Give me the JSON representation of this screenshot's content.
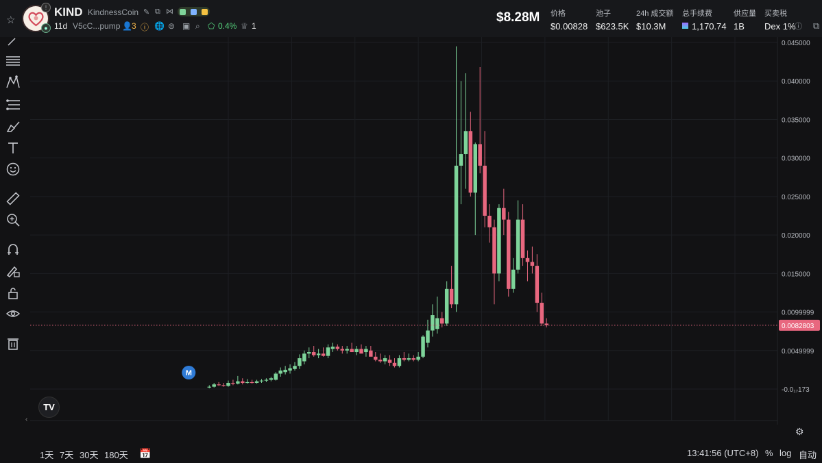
{
  "header": {
    "ticker": "KIND",
    "name": "KindnessCoin",
    "age": "11d",
    "address": "V5cC...pump",
    "holders_count": "3",
    "percent": "0.4%",
    "count": "1",
    "market_cap": "$8.28M",
    "stats": [
      {
        "label": "价格",
        "value": "$0.00828"
      },
      {
        "label": "池子",
        "value": "$623.5K"
      },
      {
        "label": "24h 成交额",
        "value": "$10.3M"
      },
      {
        "label": "总手续费",
        "value": "1,170.74"
      },
      {
        "label": "供应量",
        "value": "1B"
      },
      {
        "label": "买卖税",
        "value": "Dex 1%"
      }
    ],
    "icons": [
      "star-icon",
      "edit-icon",
      "copy-icon",
      "share-icon",
      "user-icon",
      "info-icon",
      "globe-icon",
      "twitter-icon",
      "telegram-icon",
      "search-icon",
      "lock-icon",
      "crown-icon"
    ]
  },
  "toolbar": {
    "tools": [
      "trendline-icon",
      "horizontal-lines-icon",
      "pattern-icon",
      "fib-icon",
      "brush-icon",
      "text-icon",
      "emoji-icon",
      "ruler-icon",
      "zoom-in-icon",
      "magnet-icon",
      "pencil-lock-icon",
      "lock-icon",
      "eye-icon",
      "trash-icon"
    ]
  },
  "bottom": {
    "ranges": [
      "1天",
      "7天",
      "30天",
      "180天"
    ],
    "time": "13:41:56 (UTC+8)",
    "percent_label": "%",
    "log_label": "log",
    "auto_label": "自动"
  },
  "colors": {
    "up": "#7ed49a",
    "down": "#e8677f",
    "last_price": "#e8677f",
    "marker": "#2f7bd6"
  },
  "chart_data": {
    "type": "candlestick",
    "price_label": "0.0082803",
    "y_ticks": [
      "0.045000",
      "0.040000",
      "0.035000",
      "0.030000",
      "0.025000",
      "0.020000",
      "0.015000",
      "0.0099999",
      "0.0049999",
      "-0.0₁₇173"
    ],
    "y_tick_values": [
      0.045,
      0.04,
      0.035,
      0.03,
      0.025,
      0.02,
      0.015,
      0.01,
      0.005,
      0.0
    ],
    "x_ticks": [
      "8",
      "10",
      "12",
      "14",
      "16",
      "18",
      "20",
      "22",
      "24"
    ],
    "x_tick_values": [
      8,
      10,
      12,
      14,
      16,
      18,
      20,
      22,
      24
    ],
    "last_price": 0.0082803,
    "marker": {
      "label": "M",
      "x": 7.4
    },
    "candles": [
      {
        "t": 7.4,
        "o": 0.00025,
        "h": 0.0005,
        "l": 0.0001,
        "c": 0.0003
      },
      {
        "t": 7.55,
        "o": 0.0003,
        "h": 0.0008,
        "l": 0.0002,
        "c": 0.0006
      },
      {
        "t": 7.7,
        "o": 0.0006,
        "h": 0.0009,
        "l": 0.0004,
        "c": 0.0005
      },
      {
        "t": 7.85,
        "o": 0.0005,
        "h": 0.0008,
        "l": 0.0003,
        "c": 0.0004
      },
      {
        "t": 8.0,
        "o": 0.0004,
        "h": 0.0011,
        "l": 0.0003,
        "c": 0.0008
      },
      {
        "t": 8.15,
        "o": 0.0008,
        "h": 0.0012,
        "l": 0.0005,
        "c": 0.0007
      },
      {
        "t": 8.3,
        "o": 0.0007,
        "h": 0.0017,
        "l": 0.0006,
        "c": 0.001
      },
      {
        "t": 8.45,
        "o": 0.001,
        "h": 0.0014,
        "l": 0.0006,
        "c": 0.0008
      },
      {
        "t": 8.6,
        "o": 0.0008,
        "h": 0.0013,
        "l": 0.0007,
        "c": 0.0009
      },
      {
        "t": 8.75,
        "o": 0.0009,
        "h": 0.0012,
        "l": 0.0007,
        "c": 0.0008
      },
      {
        "t": 8.9,
        "o": 0.0008,
        "h": 0.0012,
        "l": 0.0007,
        "c": 0.001
      },
      {
        "t": 9.05,
        "o": 0.001,
        "h": 0.0013,
        "l": 0.0008,
        "c": 0.0011
      },
      {
        "t": 9.2,
        "o": 0.0011,
        "h": 0.0014,
        "l": 0.0009,
        "c": 0.0012
      },
      {
        "t": 9.35,
        "o": 0.0012,
        "h": 0.0016,
        "l": 0.001,
        "c": 0.0014
      },
      {
        "t": 9.5,
        "o": 0.0012,
        "h": 0.0022,
        "l": 0.0011,
        "c": 0.002
      },
      {
        "t": 9.65,
        "o": 0.002,
        "h": 0.0028,
        "l": 0.0016,
        "c": 0.0024
      },
      {
        "t": 9.8,
        "o": 0.0022,
        "h": 0.003,
        "l": 0.0019,
        "c": 0.0025
      },
      {
        "t": 9.95,
        "o": 0.0024,
        "h": 0.0032,
        "l": 0.002,
        "c": 0.0027
      },
      {
        "t": 10.1,
        "o": 0.0026,
        "h": 0.0035,
        "l": 0.0024,
        "c": 0.003
      },
      {
        "t": 10.25,
        "o": 0.003,
        "h": 0.0045,
        "l": 0.0026,
        "c": 0.004
      },
      {
        "t": 10.4,
        "o": 0.0036,
        "h": 0.005,
        "l": 0.0032,
        "c": 0.0046
      },
      {
        "t": 10.55,
        "o": 0.0046,
        "h": 0.0054,
        "l": 0.004,
        "c": 0.0048
      },
      {
        "t": 10.7,
        "o": 0.0048,
        "h": 0.0056,
        "l": 0.0042,
        "c": 0.0044
      },
      {
        "t": 10.85,
        "o": 0.0044,
        "h": 0.0052,
        "l": 0.004,
        "c": 0.0046
      },
      {
        "t": 11.0,
        "o": 0.0046,
        "h": 0.0054,
        "l": 0.0042,
        "c": 0.0043
      },
      {
        "t": 11.15,
        "o": 0.0043,
        "h": 0.0058,
        "l": 0.004,
        "c": 0.0054
      },
      {
        "t": 11.3,
        "o": 0.0052,
        "h": 0.006,
        "l": 0.0048,
        "c": 0.0055
      },
      {
        "t": 11.45,
        "o": 0.0055,
        "h": 0.0058,
        "l": 0.005,
        "c": 0.0052
      },
      {
        "t": 11.6,
        "o": 0.0052,
        "h": 0.0056,
        "l": 0.0046,
        "c": 0.005
      },
      {
        "t": 11.75,
        "o": 0.005,
        "h": 0.0056,
        "l": 0.0046,
        "c": 0.0052
      },
      {
        "t": 11.9,
        "o": 0.0052,
        "h": 0.006,
        "l": 0.0048,
        "c": 0.0048
      },
      {
        "t": 12.05,
        "o": 0.0048,
        "h": 0.0056,
        "l": 0.0044,
        "c": 0.0052
      },
      {
        "t": 12.2,
        "o": 0.0052,
        "h": 0.0058,
        "l": 0.0048,
        "c": 0.0046
      },
      {
        "t": 12.35,
        "o": 0.0048,
        "h": 0.0056,
        "l": 0.0042,
        "c": 0.0052
      },
      {
        "t": 12.5,
        "o": 0.005,
        "h": 0.0056,
        "l": 0.0044,
        "c": 0.0042
      },
      {
        "t": 12.65,
        "o": 0.0042,
        "h": 0.0048,
        "l": 0.0036,
        "c": 0.0038
      },
      {
        "t": 12.8,
        "o": 0.0038,
        "h": 0.0046,
        "l": 0.0034,
        "c": 0.0036
      },
      {
        "t": 12.95,
        "o": 0.0036,
        "h": 0.0044,
        "l": 0.0032,
        "c": 0.004
      },
      {
        "t": 13.1,
        "o": 0.0038,
        "h": 0.0044,
        "l": 0.003,
        "c": 0.0034
      },
      {
        "t": 13.25,
        "o": 0.0034,
        "h": 0.004,
        "l": 0.0028,
        "c": 0.003
      },
      {
        "t": 13.4,
        "o": 0.003,
        "h": 0.0044,
        "l": 0.0028,
        "c": 0.004
      },
      {
        "t": 13.55,
        "o": 0.004,
        "h": 0.0048,
        "l": 0.0036,
        "c": 0.0038
      },
      {
        "t": 13.7,
        "o": 0.0038,
        "h": 0.0046,
        "l": 0.0036,
        "c": 0.004
      },
      {
        "t": 13.85,
        "o": 0.004,
        "h": 0.0044,
        "l": 0.0036,
        "c": 0.0038
      },
      {
        "t": 14.0,
        "o": 0.0038,
        "h": 0.0048,
        "l": 0.0036,
        "c": 0.0042
      },
      {
        "t": 14.15,
        "o": 0.0042,
        "h": 0.007,
        "l": 0.004,
        "c": 0.0068
      },
      {
        "t": 14.3,
        "o": 0.006,
        "h": 0.009,
        "l": 0.0054,
        "c": 0.0076
      },
      {
        "t": 14.45,
        "o": 0.0076,
        "h": 0.011,
        "l": 0.0068,
        "c": 0.0096
      },
      {
        "t": 14.6,
        "o": 0.0078,
        "h": 0.012,
        "l": 0.0072,
        "c": 0.0092
      },
      {
        "t": 14.75,
        "o": 0.0092,
        "h": 0.01,
        "l": 0.008,
        "c": 0.0085
      },
      {
        "t": 14.9,
        "o": 0.0085,
        "h": 0.014,
        "l": 0.0082,
        "c": 0.013
      },
      {
        "t": 15.05,
        "o": 0.013,
        "h": 0.016,
        "l": 0.0105,
        "c": 0.011
      },
      {
        "t": 15.2,
        "o": 0.011,
        "h": 0.0445,
        "l": 0.01,
        "c": 0.029
      },
      {
        "t": 15.35,
        "o": 0.029,
        "h": 0.04,
        "l": 0.024,
        "c": 0.0305
      },
      {
        "t": 15.5,
        "o": 0.0305,
        "h": 0.041,
        "l": 0.026,
        "c": 0.0335
      },
      {
        "t": 15.65,
        "o": 0.0335,
        "h": 0.036,
        "l": 0.025,
        "c": 0.0255
      },
      {
        "t": 15.8,
        "o": 0.0255,
        "h": 0.032,
        "l": 0.02,
        "c": 0.0318
      },
      {
        "t": 15.95,
        "o": 0.0318,
        "h": 0.0418,
        "l": 0.028,
        "c": 0.029
      },
      {
        "t": 16.1,
        "o": 0.029,
        "h": 0.0335,
        "l": 0.021,
        "c": 0.0225
      },
      {
        "t": 16.25,
        "o": 0.0225,
        "h": 0.024,
        "l": 0.019,
        "c": 0.021
      },
      {
        "t": 16.4,
        "o": 0.021,
        "h": 0.022,
        "l": 0.011,
        "c": 0.015
      },
      {
        "t": 16.55,
        "o": 0.015,
        "h": 0.024,
        "l": 0.014,
        "c": 0.0235
      },
      {
        "t": 16.7,
        "o": 0.0235,
        "h": 0.026,
        "l": 0.02,
        "c": 0.022
      },
      {
        "t": 16.85,
        "o": 0.022,
        "h": 0.023,
        "l": 0.012,
        "c": 0.013
      },
      {
        "t": 17.0,
        "o": 0.013,
        "h": 0.017,
        "l": 0.0125,
        "c": 0.0155
      },
      {
        "t": 17.15,
        "o": 0.0155,
        "h": 0.0245,
        "l": 0.015,
        "c": 0.022
      },
      {
        "t": 17.3,
        "o": 0.022,
        "h": 0.024,
        "l": 0.016,
        "c": 0.017
      },
      {
        "t": 17.45,
        "o": 0.017,
        "h": 0.018,
        "l": 0.014,
        "c": 0.0165
      },
      {
        "t": 17.6,
        "o": 0.0165,
        "h": 0.0185,
        "l": 0.015,
        "c": 0.016
      },
      {
        "t": 17.75,
        "o": 0.016,
        "h": 0.0175,
        "l": 0.01,
        "c": 0.0112
      },
      {
        "t": 17.9,
        "o": 0.0112,
        "h": 0.0125,
        "l": 0.0082,
        "c": 0.0085
      },
      {
        "t": 18.05,
        "o": 0.0085,
        "h": 0.0092,
        "l": 0.008,
        "c": 0.0083
      }
    ]
  }
}
